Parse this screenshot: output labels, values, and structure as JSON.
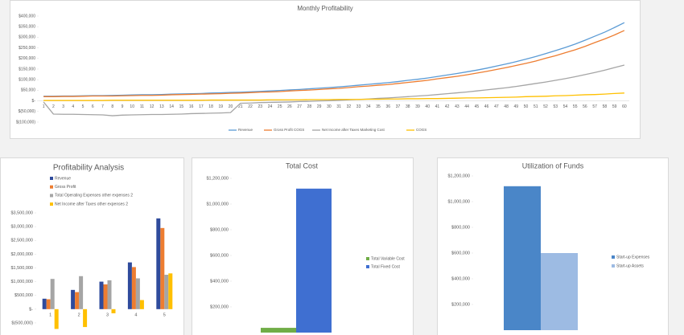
{
  "chart_data": [
    {
      "type": "line",
      "title": "Monthly Profitability",
      "categories": [
        "1",
        "2",
        "3",
        "4",
        "5",
        "6",
        "7",
        "8",
        "9",
        "10",
        "11",
        "12",
        "13",
        "14",
        "15",
        "16",
        "17",
        "18",
        "19",
        "20",
        "21",
        "22",
        "23",
        "24",
        "25",
        "26",
        "27",
        "28",
        "29",
        "30",
        "31",
        "32",
        "33",
        "34",
        "35",
        "36",
        "37",
        "38",
        "39",
        "40",
        "41",
        "42",
        "43",
        "44",
        "45",
        "46",
        "47",
        "48",
        "49",
        "50",
        "51",
        "52",
        "53",
        "54",
        "55",
        "56",
        "57",
        "58",
        "59",
        "60"
      ],
      "series": [
        {
          "name": "Revenue",
          "color": "#5b9bd5",
          "values": [
            22000,
            22000,
            23000,
            23000,
            24000,
            25000,
            25000,
            26000,
            27000,
            28000,
            29000,
            29000,
            30000,
            32000,
            33000,
            34000,
            35000,
            37000,
            38000,
            40000,
            41000,
            43000,
            45000,
            47000,
            49000,
            52000,
            54000,
            57000,
            60000,
            63000,
            66000,
            70000,
            74000,
            78000,
            82000,
            86000,
            91000,
            97000,
            102000,
            108000,
            115000,
            122000,
            129000,
            137000,
            145000,
            154000,
            164000,
            174000,
            185000,
            197000,
            209000,
            223000,
            237000,
            252000,
            268000,
            286000,
            305000,
            324000,
            346000,
            369000
          ]
        },
        {
          "name": "Gross Profit COGS",
          "color": "#ed7d31",
          "values": [
            20000,
            20000,
            21000,
            21000,
            22000,
            23000,
            23000,
            23000,
            24000,
            25000,
            26000,
            26000,
            27000,
            29000,
            30000,
            31000,
            32000,
            33000,
            34000,
            36000,
            37000,
            39000,
            41000,
            42000,
            44000,
            47000,
            49000,
            51000,
            54000,
            57000,
            59000,
            63000,
            67000,
            70000,
            74000,
            77000,
            82000,
            87000,
            92000,
            97000,
            104000,
            110000,
            116000,
            123000,
            131000,
            139000,
            148000,
            157000,
            167000,
            177000,
            188000,
            201000,
            213000,
            227000,
            241000,
            257000,
            275000,
            292000,
            311000,
            332000
          ]
        },
        {
          "name": "Net Income after Taxes Marketing Cost",
          "color": "#a5a5a5",
          "values": [
            -5000,
            -62000,
            -63000,
            -63000,
            -64000,
            -65000,
            -66000,
            -70000,
            -67000,
            -66000,
            -65000,
            -64000,
            -64000,
            -63000,
            -62000,
            -60000,
            -59000,
            -58000,
            -57000,
            -55000,
            -11000,
            -10000,
            -8000,
            -7000,
            -6000,
            -5000,
            -3000,
            -2000,
            0,
            1000,
            3000,
            5000,
            7000,
            9000,
            12000,
            14000,
            17000,
            20000,
            23000,
            26000,
            30000,
            34000,
            38000,
            42000,
            47000,
            52000,
            57000,
            62000,
            68000,
            75000,
            82000,
            89000,
            97000,
            105000,
            114000,
            124000,
            134000,
            145000,
            157000,
            169000
          ]
        },
        {
          "name": "COGS",
          "color": "#ffc000",
          "values": [
            2000,
            2000,
            2000,
            2000,
            2000,
            2000,
            2000,
            3000,
            3000,
            3000,
            3000,
            3000,
            3000,
            3000,
            3000,
            3000,
            3000,
            4000,
            4000,
            4000,
            4000,
            4000,
            4000,
            5000,
            5000,
            5000,
            5000,
            6000,
            6000,
            6000,
            7000,
            7000,
            7000,
            8000,
            8000,
            9000,
            9000,
            10000,
            10000,
            11000,
            11000,
            12000,
            13000,
            14000,
            14000,
            15000,
            16000,
            17000,
            18000,
            20000,
            21000,
            22000,
            24000,
            25000,
            27000,
            29000,
            30000,
            32000,
            35000,
            37000
          ]
        }
      ],
      "ylim": [
        -100000,
        400000
      ],
      "yticks": [
        {
          "value": -100000,
          "label": "$(100,000)"
        },
        {
          "value": -50000,
          "label": "$(50,000)"
        },
        {
          "value": 0,
          "label": "$-"
        },
        {
          "value": 50000,
          "label": "$50,000"
        },
        {
          "value": 100000,
          "label": "$100,000"
        },
        {
          "value": 150000,
          "label": "$150,000"
        },
        {
          "value": 200000,
          "label": "$200,000"
        },
        {
          "value": 250000,
          "label": "$250,000"
        },
        {
          "value": 300000,
          "label": "$300,000"
        },
        {
          "value": 350000,
          "label": "$350,000"
        },
        {
          "value": 400000,
          "label": "$400,000"
        }
      ],
      "legend": "bottom"
    },
    {
      "type": "bar",
      "title": "Profitability Analysis",
      "categories": [
        "1",
        "2",
        "3",
        "4",
        "5"
      ],
      "series": [
        {
          "name": "Revenue",
          "color": "#2f4b9c",
          "values": [
            380000,
            700000,
            1000000,
            1700000,
            3300000
          ]
        },
        {
          "name": "Gross Profit",
          "color": "#ed7d31",
          "values": [
            360000,
            620000,
            900000,
            1530000,
            2950000
          ]
        },
        {
          "name": "Total Operating Expenses other expenses 2",
          "color": "#a5a5a5",
          "values": [
            1100000,
            1200000,
            1050000,
            1120000,
            1250000
          ]
        },
        {
          "name": "Net Income after Taxes other expenses 2",
          "color": "#ffc000",
          "values": [
            -720000,
            -650000,
            -150000,
            330000,
            1300000
          ]
        }
      ],
      "ylim": [
        -750000,
        3500000
      ],
      "yticks": [
        {
          "value": -500000,
          "label": "$(500,000)"
        },
        {
          "value": 0,
          "label": "$-"
        },
        {
          "value": 500000,
          "label": "$500,000"
        },
        {
          "value": 1000000,
          "label": "$1,000,000"
        },
        {
          "value": 1500000,
          "label": "$1,500,000"
        },
        {
          "value": 2000000,
          "label": "$2,000,000"
        },
        {
          "value": 2500000,
          "label": "$2,500,000"
        },
        {
          "value": 3000000,
          "label": "$3,000,000"
        },
        {
          "value": 3500000,
          "label": "$3,500,000"
        }
      ],
      "legend": "top-left"
    },
    {
      "type": "bar",
      "title": "Total Cost",
      "series": [
        {
          "name": "Total Variable Cost",
          "color": "#70ad47",
          "values": [
            37000
          ]
        },
        {
          "name": "Total Fixed Cost",
          "color": "#3f6fd1",
          "values": [
            1120000
          ]
        }
      ],
      "ylim": [
        0,
        1200000
      ],
      "yticks": [
        {
          "value": 200000,
          "label": "$200,000"
        },
        {
          "value": 400000,
          "label": "$400,000"
        },
        {
          "value": 600000,
          "label": "$600,000"
        },
        {
          "value": 800000,
          "label": "$800,000"
        },
        {
          "value": 1000000,
          "label": "$1,000,000"
        },
        {
          "value": 1200000,
          "label": "$1,200,000"
        }
      ],
      "legend": "right"
    },
    {
      "type": "bar",
      "title": "Utilization of Funds",
      "series": [
        {
          "name": "Start-up Expenses",
          "color": "#4a86c8",
          "values": [
            1120000
          ]
        },
        {
          "name": "Start-up Assets",
          "color": "#9dbbe3",
          "values": [
            600000
          ]
        }
      ],
      "ylim": [
        0,
        1200000
      ],
      "yticks": [
        {
          "value": 200000,
          "label": "$200,000"
        },
        {
          "value": 400000,
          "label": "$400,000"
        },
        {
          "value": 600000,
          "label": "$600,000"
        },
        {
          "value": 800000,
          "label": "$800,000"
        },
        {
          "value": 1000000,
          "label": "$1,000,000"
        },
        {
          "value": 1200000,
          "label": "$1,200,000"
        }
      ],
      "legend": "right"
    }
  ]
}
